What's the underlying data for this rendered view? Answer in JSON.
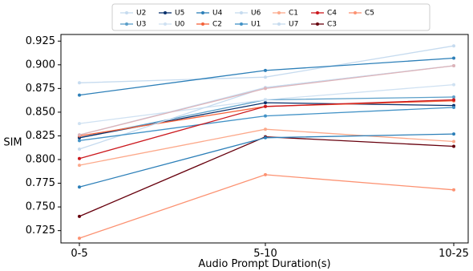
{
  "chart_data": {
    "type": "line",
    "title": "",
    "xlabel": "Audio Prompt Duration(s)",
    "ylabel": "SIM",
    "categories": [
      "0-5",
      "5-10",
      "10-25"
    ],
    "ylim": [
      0.712,
      0.932
    ],
    "yticks": [
      "0.725",
      "0.750",
      "0.775",
      "0.800",
      "0.825",
      "0.850",
      "0.875",
      "0.900",
      "0.925"
    ],
    "grid": false,
    "legend_position": "top-center",
    "series": [
      {
        "name": "U2",
        "color": "#c6dbef",
        "values": [
          0.881,
          0.887,
          0.92
        ]
      },
      {
        "name": "U3",
        "color": "#5b9fc9",
        "values": [
          0.823,
          0.863,
          0.866
        ]
      },
      {
        "name": "U5",
        "color": "#08306b",
        "values": [
          0.823,
          0.86,
          0.857
        ]
      },
      {
        "name": "U0",
        "color": "#cfe1f2",
        "values": [
          0.838,
          0.863,
          0.879
        ]
      },
      {
        "name": "U4",
        "color": "#2c7fb8",
        "values": [
          0.868,
          0.894,
          0.907
        ]
      },
      {
        "name": "C2",
        "color": "#f4623a",
        "values": [
          0.825,
          0.856,
          0.862
        ]
      },
      {
        "name": "U6",
        "color": "#c6dbef",
        "values": [
          0.811,
          0.876,
          0.899
        ]
      },
      {
        "name": "U1",
        "color": "#4292c6",
        "values": [
          0.82,
          0.846,
          0.855
        ]
      },
      {
        "name": "C1",
        "color": "#fca98b",
        "values": [
          0.794,
          0.832,
          0.819
        ]
      },
      {
        "name": "U7",
        "color": "#c6dbef",
        "values": [
          0.826,
          0.876,
          0.899
        ]
      },
      {
        "name": "C4",
        "color": "#cb181d",
        "values": [
          0.801,
          0.856,
          0.863
        ]
      },
      {
        "name": "C3",
        "color": "#67000d",
        "values": [
          0.74,
          0.824,
          0.814
        ]
      },
      {
        "name": "C5",
        "color": "#fc9272",
        "values": [
          0.717,
          0.784,
          0.768
        ]
      },
      {
        "name": "",
        "color": "#2c7fb8",
        "values": [
          0.771,
          0.823,
          0.827
        ]
      },
      {
        "name": "",
        "color": "#deb3b8",
        "values": [
          0.826,
          0.875,
          0.899
        ]
      }
    ]
  }
}
